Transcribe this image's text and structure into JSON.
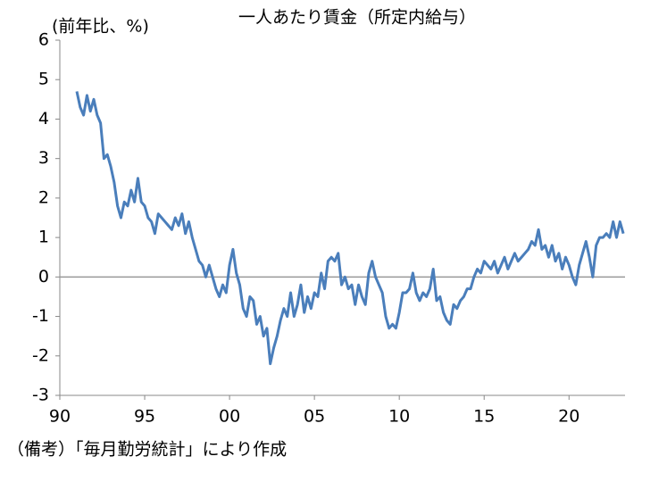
{
  "chart_data": {
    "type": "line",
    "title": "一人あたり賃金（所定内給与）",
    "y_label": "(前年比、%)",
    "note": "（備考）「毎月勤労統計」により作成",
    "x": [
      1991.0,
      1991.2,
      1991.4,
      1991.6,
      1991.8,
      1992.0,
      1992.2,
      1992.4,
      1992.6,
      1992.8,
      1993.0,
      1993.2,
      1993.4,
      1993.6,
      1993.8,
      1994.0,
      1994.2,
      1994.4,
      1994.6,
      1994.8,
      1995.0,
      1995.2,
      1995.4,
      1995.6,
      1995.8,
      1996.0,
      1996.2,
      1996.4,
      1996.6,
      1996.8,
      1997.0,
      1997.2,
      1997.4,
      1997.6,
      1997.8,
      1998.0,
      1998.2,
      1998.4,
      1998.6,
      1998.8,
      1999.0,
      1999.2,
      1999.4,
      1999.6,
      1999.8,
      2000.0,
      2000.2,
      2000.4,
      2000.6,
      2000.8,
      2001.0,
      2001.2,
      2001.4,
      2001.6,
      2001.8,
      2002.0,
      2002.2,
      2002.4,
      2002.6,
      2002.8,
      2003.0,
      2003.2,
      2003.4,
      2003.6,
      2003.8,
      2004.0,
      2004.2,
      2004.4,
      2004.6,
      2004.8,
      2005.0,
      2005.2,
      2005.4,
      2005.6,
      2005.8,
      2006.0,
      2006.2,
      2006.4,
      2006.6,
      2006.8,
      2007.0,
      2007.2,
      2007.4,
      2007.6,
      2007.8,
      2008.0,
      2008.2,
      2008.4,
      2008.6,
      2008.8,
      2009.0,
      2009.2,
      2009.4,
      2009.6,
      2009.8,
      2010.0,
      2010.2,
      2010.4,
      2010.6,
      2010.8,
      2011.0,
      2011.2,
      2011.4,
      2011.6,
      2011.8,
      2012.0,
      2012.2,
      2012.4,
      2012.6,
      2012.8,
      2013.0,
      2013.2,
      2013.4,
      2013.6,
      2013.8,
      2014.0,
      2014.2,
      2014.4,
      2014.6,
      2014.8,
      2015.0,
      2015.2,
      2015.4,
      2015.6,
      2015.8,
      2016.0,
      2016.2,
      2016.4,
      2016.6,
      2016.8,
      2017.0,
      2017.2,
      2017.4,
      2017.6,
      2017.8,
      2018.0,
      2018.2,
      2018.4,
      2018.6,
      2018.8,
      2019.0,
      2019.2,
      2019.4,
      2019.6,
      2019.8,
      2020.0,
      2020.2,
      2020.4,
      2020.6,
      2020.8,
      2021.0,
      2021.2,
      2021.4,
      2021.6,
      2021.8,
      2022.0,
      2022.2,
      2022.4,
      2022.6,
      2022.8,
      2023.0,
      2023.2
    ],
    "series": [
      {
        "color": "#4a7ebb",
        "values": [
          4.7,
          4.3,
          4.1,
          4.6,
          4.2,
          4.5,
          4.1,
          3.9,
          3.0,
          3.1,
          2.8,
          2.4,
          1.8,
          1.5,
          1.9,
          1.8,
          2.2,
          1.9,
          2.5,
          1.9,
          1.8,
          1.5,
          1.4,
          1.1,
          1.6,
          1.5,
          1.4,
          1.3,
          1.2,
          1.5,
          1.3,
          1.6,
          1.1,
          1.4,
          1.0,
          0.7,
          0.4,
          0.3,
          0.0,
          0.3,
          0.0,
          -0.3,
          -0.5,
          -0.2,
          -0.4,
          0.3,
          0.7,
          0.1,
          -0.2,
          -0.8,
          -1.0,
          -0.5,
          -0.6,
          -1.2,
          -1.0,
          -1.5,
          -1.3,
          -2.2,
          -1.8,
          -1.5,
          -1.1,
          -0.8,
          -1.0,
          -0.4,
          -1.0,
          -0.7,
          -0.2,
          -0.9,
          -0.5,
          -0.8,
          -0.4,
          -0.5,
          0.1,
          -0.3,
          0.4,
          0.5,
          0.4,
          0.6,
          -0.2,
          0.0,
          -0.3,
          -0.2,
          -0.7,
          -0.2,
          -0.5,
          -0.7,
          0.1,
          0.4,
          0.0,
          -0.2,
          -0.4,
          -1.0,
          -1.3,
          -1.2,
          -1.3,
          -0.9,
          -0.4,
          -0.4,
          -0.3,
          0.1,
          -0.4,
          -0.6,
          -0.4,
          -0.5,
          -0.3,
          0.2,
          -0.6,
          -0.5,
          -0.9,
          -1.1,
          -1.2,
          -0.7,
          -0.8,
          -0.6,
          -0.5,
          -0.3,
          -0.3,
          0.0,
          0.2,
          0.1,
          0.4,
          0.3,
          0.2,
          0.4,
          0.1,
          0.3,
          0.5,
          0.2,
          0.4,
          0.6,
          0.4,
          0.5,
          0.6,
          0.7,
          0.9,
          0.8,
          1.2,
          0.7,
          0.8,
          0.5,
          0.8,
          0.4,
          0.6,
          0.2,
          0.5,
          0.3,
          0.0,
          -0.2,
          0.3,
          0.6,
          0.9,
          0.5,
          0.0,
          0.8,
          1.0,
          1.0,
          1.1,
          1.0,
          1.4,
          1.0,
          1.4,
          1.1
        ]
      }
    ],
    "xlim": [
      1990,
      2023.3
    ],
    "xticks": [
      {
        "value": 1990,
        "label": "90"
      },
      {
        "value": 1995,
        "label": "95"
      },
      {
        "value": 2000,
        "label": "00"
      },
      {
        "value": 2005,
        "label": "05"
      },
      {
        "value": 2010,
        "label": "10"
      },
      {
        "value": 2015,
        "label": "15"
      },
      {
        "value": 2020,
        "label": "20"
      }
    ],
    "ylim": [
      -3,
      6
    ],
    "yticks": [
      -3,
      -2,
      -1,
      0,
      1,
      2,
      3,
      4,
      5,
      6
    ]
  }
}
